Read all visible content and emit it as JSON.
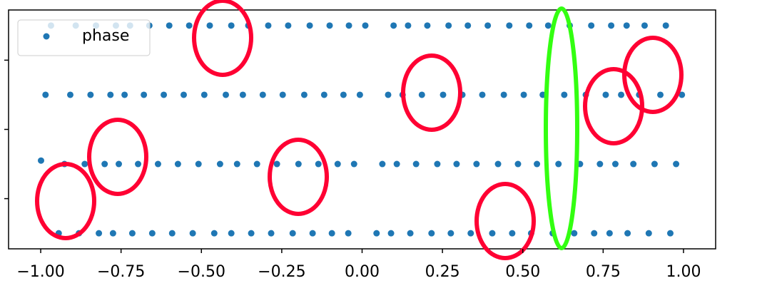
{
  "chart_data": {
    "type": "scatter",
    "x": [
      -0.999,
      -0.985,
      -0.968,
      -0.944,
      -0.926,
      -0.908,
      -0.891,
      -0.881,
      -0.863,
      -0.845,
      -0.828,
      -0.819,
      -0.801,
      -0.783,
      -0.766,
      -0.775,
      -0.757,
      -0.739,
      -0.722,
      -0.715,
      -0.697,
      -0.679,
      -0.662,
      -0.653,
      -0.635,
      -0.617,
      -0.6,
      -0.591,
      -0.573,
      -0.555,
      -0.538,
      -0.527,
      -0.509,
      -0.491,
      -0.474,
      -0.46,
      -0.442,
      -0.424,
      -0.407,
      -0.407,
      -0.389,
      -0.371,
      -0.354,
      -0.345,
      -0.327,
      -0.309,
      -0.292,
      -0.283,
      -0.265,
      -0.247,
      -0.23,
      -0.216,
      -0.198,
      -0.18,
      -0.163,
      -0.154,
      -0.136,
      -0.118,
      -0.101,
      -0.094,
      -0.076,
      -0.058,
      -0.041,
      -0.043,
      -0.025,
      -0.007,
      0.01,
      0.045,
      0.063,
      0.081,
      0.098,
      0.09,
      0.108,
      0.126,
      0.143,
      0.15,
      0.168,
      0.186,
      0.203,
      0.216,
      0.234,
      0.252,
      0.269,
      0.276,
      0.294,
      0.312,
      0.329,
      0.338,
      0.356,
      0.374,
      0.391,
      0.405,
      0.423,
      0.441,
      0.458,
      0.467,
      0.485,
      0.503,
      0.52,
      0.526,
      0.544,
      0.562,
      0.579,
      0.593,
      0.611,
      0.629,
      0.646,
      0.66,
      0.678,
      0.696,
      0.713,
      0.722,
      0.74,
      0.758,
      0.775,
      0.77,
      0.788,
      0.806,
      0.823,
      0.826,
      0.844,
      0.862,
      0.879,
      0.892,
      0.91,
      0.928,
      0.945,
      0.959,
      0.977,
      0.995
    ],
    "series": [
      {
        "name": "phase",
        "color": "#1f77b4",
        "values": [
          -0.9,
          1,
          3,
          -3,
          -1,
          1,
          3,
          -3,
          -1,
          1,
          3,
          -3,
          -1,
          1,
          3,
          -3,
          -1,
          1,
          3,
          -3,
          -1,
          1,
          3,
          -3,
          -1,
          1,
          3,
          -3,
          -1,
          1,
          3,
          -3,
          -1,
          1,
          3,
          -3,
          -1,
          1,
          3,
          -3,
          -1,
          1,
          3,
          -3,
          -1,
          1,
          3,
          -3,
          -1,
          1,
          3,
          -3,
          -1,
          1,
          3,
          -3,
          -1,
          1,
          3,
          -3,
          -1,
          1,
          3,
          -3,
          -1,
          1,
          3,
          -3,
          -1,
          1,
          3,
          -3,
          -1,
          1,
          3,
          -3,
          -1,
          1,
          3,
          -3,
          -1,
          1,
          3,
          -3,
          -1,
          1,
          3,
          -3,
          -1,
          1,
          3,
          -3,
          -1,
          1,
          3,
          -3,
          -1,
          1,
          3,
          -3,
          -1,
          1,
          3,
          -3,
          -1,
          1,
          3,
          -3,
          -1,
          1,
          3,
          -3,
          -1,
          1,
          3,
          -3,
          -1,
          1,
          3,
          -3,
          -1,
          1,
          3,
          -3,
          -1,
          1,
          3,
          -3,
          -1,
          1
        ]
      }
    ],
    "xlim": [
      -1.1,
      1.1
    ],
    "xticks": [
      {
        "value": -1,
        "label": "−1.00"
      },
      {
        "value": -0.75,
        "label": "−0.75"
      },
      {
        "value": -0.5,
        "label": "−0.50"
      },
      {
        "value": -0.25,
        "label": "−0.25"
      },
      {
        "value": 0,
        "label": "0.00"
      },
      {
        "value": 0.25,
        "label": "0.25"
      },
      {
        "value": 0.5,
        "label": "0.50"
      },
      {
        "value": 0.75,
        "label": "0.75"
      },
      {
        "value": 1,
        "label": "1.00"
      }
    ],
    "ylim": [
      -3.45,
      3.45
    ],
    "yticks": [
      -2,
      0,
      2
    ],
    "legend": "upper left"
  }
}
